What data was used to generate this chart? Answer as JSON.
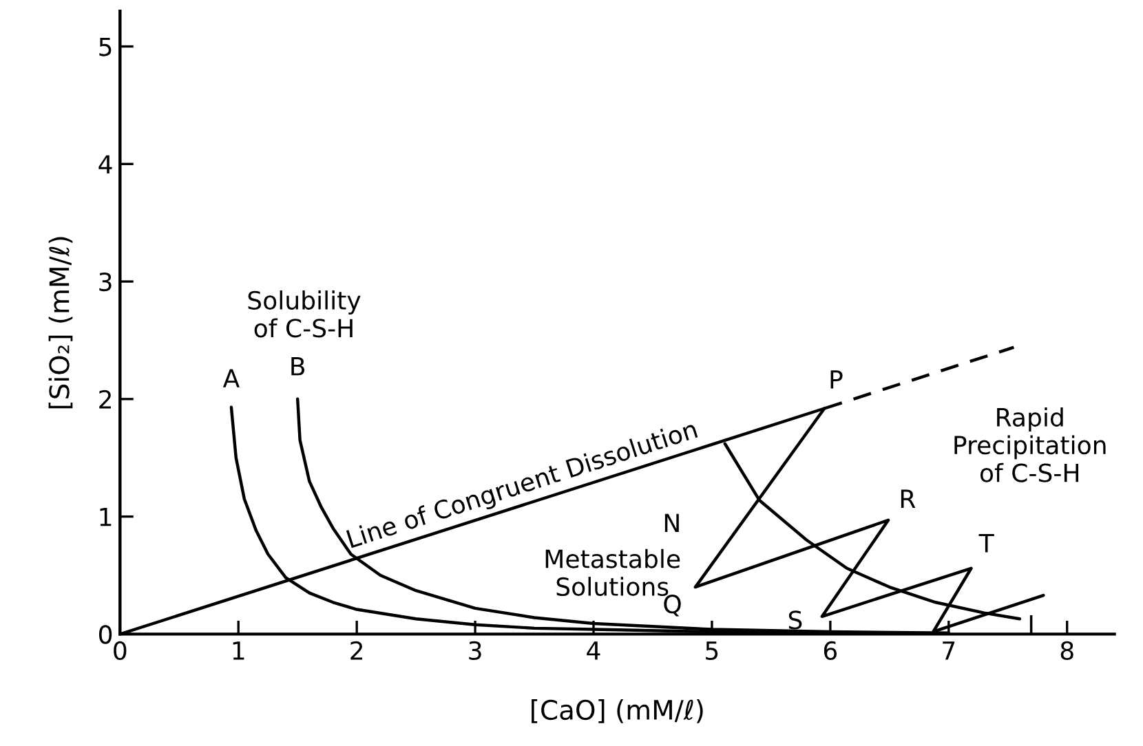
{
  "chart_data": {
    "type": "line",
    "xlabel": "[CaO] (mM/ℓ)",
    "ylabel": "[SiO₂] (mM/ℓ)",
    "xlim": [
      0,
      8.4
    ],
    "ylim": [
      0,
      5.3
    ],
    "xticks": [
      0,
      1,
      2,
      3,
      4,
      5,
      6,
      7,
      8
    ],
    "yticks": [
      0,
      1,
      2,
      3,
      4,
      5
    ],
    "grid": false,
    "legend": false,
    "marker": "none",
    "series": [
      {
        "color": "#000000",
        "line_style": "solid",
        "x": [
          0,
          5.95
        ],
        "values": [
          0,
          1.92
        ]
      },
      {
        "color": "#000000",
        "line_style": "dashed",
        "x": [
          5.95,
          7.55
        ],
        "values": [
          1.92,
          2.44
        ]
      },
      {
        "color": "#000000",
        "line_style": "solid",
        "x": [
          0.94,
          0.98,
          1.05,
          1.15,
          1.25,
          1.4,
          1.6,
          1.8,
          2.0,
          2.5,
          3.0,
          3.5,
          4.0,
          5.0,
          6.0
        ],
        "values": [
          1.93,
          1.5,
          1.15,
          0.88,
          0.68,
          0.48,
          0.35,
          0.27,
          0.21,
          0.13,
          0.08,
          0.05,
          0.04,
          0.02,
          0.01
        ]
      },
      {
        "color": "#000000",
        "line_style": "solid",
        "x": [
          1.5,
          1.52,
          1.6,
          1.7,
          1.8,
          1.95,
          2.2,
          2.5,
          3.0,
          3.5,
          4.0,
          5.0,
          6.0,
          7.0
        ],
        "values": [
          2.0,
          1.65,
          1.3,
          1.08,
          0.9,
          0.68,
          0.5,
          0.37,
          0.22,
          0.14,
          0.09,
          0.04,
          0.02,
          0.01
        ]
      },
      {
        "color": "#000000",
        "line_style": "solid",
        "x": [
          5.11,
          5.4,
          5.8,
          6.14,
          6.5,
          6.89,
          7.3,
          7.6
        ],
        "values": [
          1.62,
          1.14,
          0.8,
          0.56,
          0.4,
          0.27,
          0.18,
          0.13
        ]
      },
      {
        "color": "#000000",
        "line_style": "solid",
        "x": [
          5.95,
          4.86,
          6.49,
          5.93,
          7.19,
          6.87,
          7.8
        ],
        "values": [
          1.92,
          0.4,
          0.97,
          0.15,
          0.56,
          0.02,
          0.33
        ]
      }
    ],
    "annotations": [
      {
        "text": "Line of Congruent Dissolution",
        "x": 3.4,
        "y": 1.097
      },
      "Solubility\nof C-S-H",
      {
        "text": "A",
        "x": 0.94,
        "y": 1.93
      },
      {
        "text": "B",
        "x": 1.5,
        "y": 2.0
      },
      "N",
      "Metastable\nSolutions",
      {
        "text": "P",
        "x": 5.95,
        "y": 1.92
      },
      {
        "text": "Q",
        "x": 4.86,
        "y": 0.4
      },
      {
        "text": "R",
        "x": 6.49,
        "y": 0.97
      },
      {
        "text": "S",
        "x": 5.93,
        "y": 0.15
      },
      {
        "text": "T",
        "x": 7.19,
        "y": 0.56
      },
      {
        "text": "I",
        "x": 7.6,
        "y": 0.13
      },
      "Rapid\nPrecipitation\nof C-S-H"
    ]
  }
}
